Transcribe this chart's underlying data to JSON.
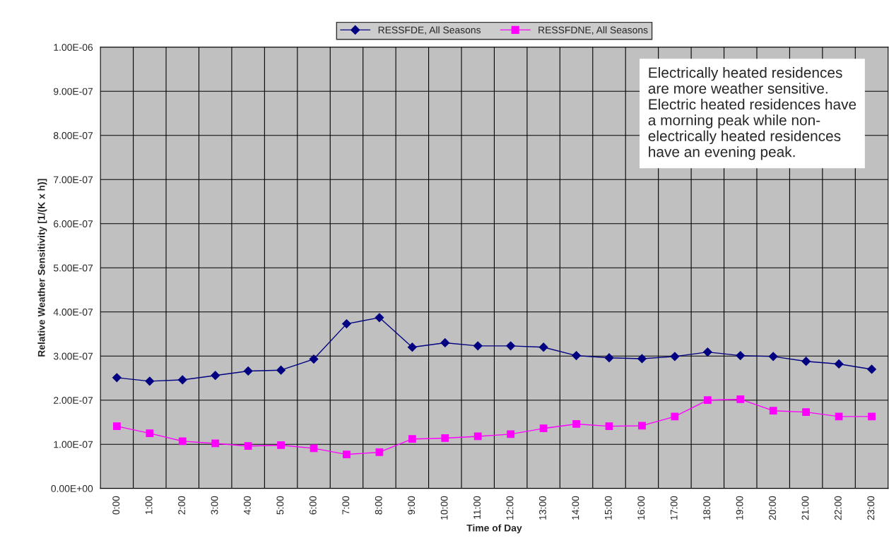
{
  "chart_data": {
    "type": "line",
    "xlabel": "Time of Day",
    "ylabel": "Relative Weather Sensitivity [1/(K x h)]",
    "categories": [
      "0:00",
      "1:00",
      "2:00",
      "3:00",
      "4:00",
      "5:00",
      "6:00",
      "7:00",
      "8:00",
      "9:00",
      "10:00",
      "11:00",
      "12:00",
      "13:00",
      "14:00",
      "15:00",
      "16:00",
      "17:00",
      "18:00",
      "19:00",
      "20:00",
      "21:00",
      "22:00",
      "23:00"
    ],
    "series": [
      {
        "name": "RESSFDE, All Seasons",
        "color": "#000080",
        "marker": "diamond",
        "values": [
          2.51e-07,
          2.43e-07,
          2.46e-07,
          2.56e-07,
          2.66e-07,
          2.68e-07,
          2.93e-07,
          3.73e-07,
          3.87e-07,
          3.2e-07,
          3.3e-07,
          3.23e-07,
          3.23e-07,
          3.2e-07,
          3.01e-07,
          2.96e-07,
          2.94e-07,
          2.99e-07,
          3.09e-07,
          3.01e-07,
          2.99e-07,
          2.88e-07,
          2.82e-07,
          2.7e-07
        ]
      },
      {
        "name": "RESSFDNE, All Seasons",
        "color": "#ff00ff",
        "marker": "square",
        "values": [
          1.41e-07,
          1.25e-07,
          1.07e-07,
          1.02e-07,
          9.6e-08,
          9.8e-08,
          9.1e-08,
          7.7e-08,
          8.2e-08,
          1.12e-07,
          1.14e-07,
          1.18e-07,
          1.23e-07,
          1.36e-07,
          1.46e-07,
          1.41e-07,
          1.42e-07,
          1.63e-07,
          2e-07,
          2.02e-07,
          1.76e-07,
          1.73e-07,
          1.63e-07,
          1.63e-07
        ]
      }
    ],
    "ylim": [
      0,
      1e-06
    ],
    "yticks": [
      {
        "value": 0,
        "label": "0.00E+00"
      },
      {
        "value": 1e-07,
        "label": "1.00E-07"
      },
      {
        "value": 2e-07,
        "label": "2.00E-07"
      },
      {
        "value": 3e-07,
        "label": "3.00E-07"
      },
      {
        "value": 4e-07,
        "label": "4.00E-07"
      },
      {
        "value": 5e-07,
        "label": "5.00E-07"
      },
      {
        "value": 6e-07,
        "label": "6.00E-07"
      },
      {
        "value": 7e-07,
        "label": "7.00E-07"
      },
      {
        "value": 8e-07,
        "label": "8.00E-07"
      },
      {
        "value": 9e-07,
        "label": "9.00E-07"
      },
      {
        "value": 1e-06,
        "label": "1.00E-06"
      }
    ],
    "annotations": [
      "Electrically heated residences\nare more weather sensitive.\nElectric heated residences have\na morning peak while non-\nelectrically heated residences\nhave an evening peak."
    ],
    "grid": true,
    "legend": "top",
    "line_style": "solid"
  }
}
